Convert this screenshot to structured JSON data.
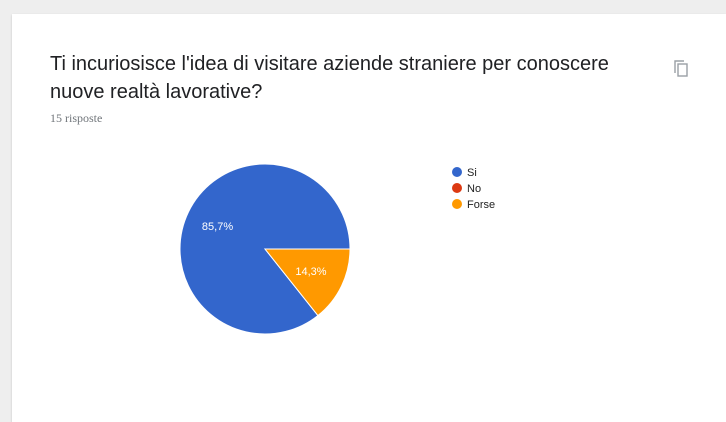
{
  "question": {
    "title": "Ti incuriosisce l'idea di visitare aziende straniere per conoscere nuove realtà lavorative?",
    "response_count": "15 risposte",
    "copy_icon": "copy-icon"
  },
  "chart_data": {
    "type": "pie",
    "categories": [
      "Si",
      "No",
      "Forse"
    ],
    "values": [
      85.7,
      0,
      14.3
    ],
    "value_labels": [
      "85,7%",
      "",
      "14,3%"
    ],
    "colors": [
      "#3366cc",
      "#dc3912",
      "#ff9900"
    ],
    "legend_position": "right",
    "title": ""
  }
}
